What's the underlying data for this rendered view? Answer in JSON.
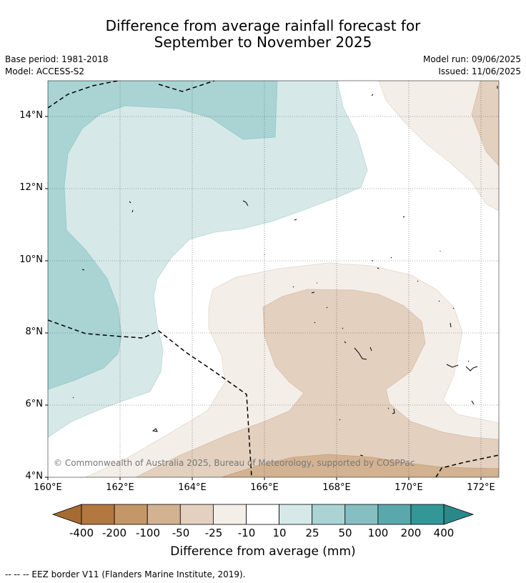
{
  "title_line1": "Difference from average rainfall forecast for",
  "title_line2": "September to November 2025",
  "base_period": "Base period: 1981-2018",
  "model": "Model: ACCESS-S2",
  "model_run": "Model run: 09/06/2025",
  "issued": "Issued: 11/06/2025",
  "copyright": "© Commonwealth of Australia 2025, Bureau of Meteorology, supported by COSPPac",
  "lat_labels": [
    "14°N",
    "12°N",
    "10°N",
    "8°N",
    "6°N",
    "4°N"
  ],
  "lon_labels": [
    "160°E",
    "162°E",
    "164°E",
    "166°E",
    "168°E",
    "170°E",
    "172°E"
  ],
  "colorbar": {
    "label": "Difference from average (mm)",
    "ticks": [
      "-400",
      "-200",
      "-100",
      "-50",
      "-25",
      "-10",
      "10",
      "25",
      "50",
      "100",
      "200",
      "400"
    ],
    "colors": [
      "#a66b33",
      "#b27840",
      "#c49769",
      "#d3b291",
      "#e3d0be",
      "#f4eee9",
      "#ffffff",
      "#d6e9e8",
      "#aad4d4",
      "#85bfc1",
      "#5aa8ab",
      "#339797",
      "#2a8888"
    ]
  },
  "legend_footer": "--  --  -- EEZ border V11 (Flanders Marine Institute, 2019)."
}
